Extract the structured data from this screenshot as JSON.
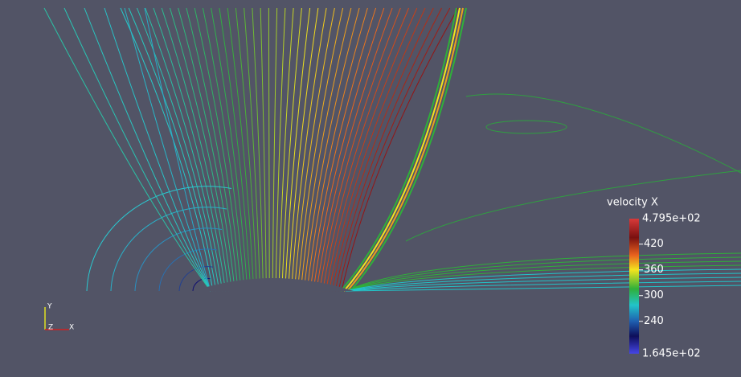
{
  "colorbar": {
    "title": "velocity X",
    "min": {
      "value": 164.5,
      "label": "1.645e+02"
    },
    "max": {
      "value": 479.5,
      "label": "4.795e+02"
    },
    "ticks": [
      420,
      360,
      300,
      240
    ]
  },
  "axes_triad": {
    "x": "X",
    "y": "Y",
    "z": "Z"
  }
}
